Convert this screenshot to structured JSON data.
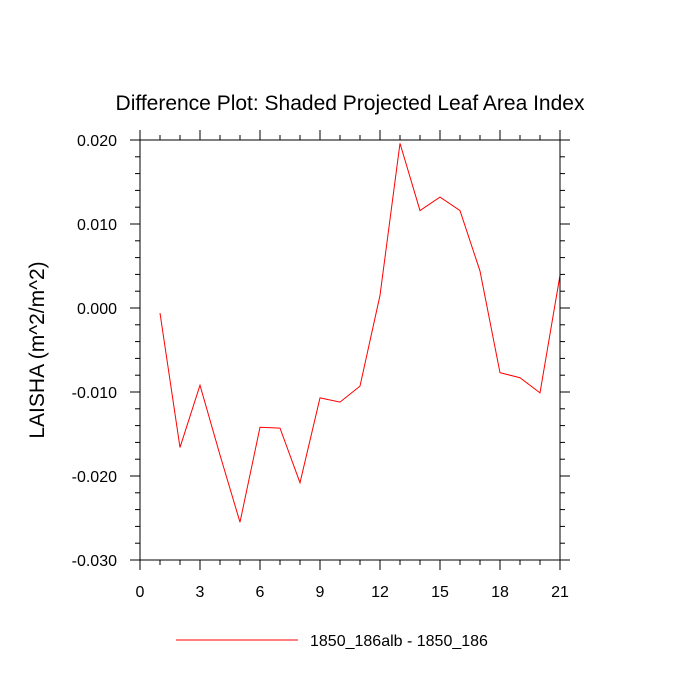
{
  "chart_data": {
    "type": "line",
    "title": "Difference Plot: Shaded Projected Leaf Area Index",
    "xlabel": "",
    "ylabel": "LAISHA  (m^2/m^2)",
    "xlim": [
      0,
      21
    ],
    "ylim": [
      -0.03,
      0.02
    ],
    "x_ticks": [
      0,
      3,
      6,
      9,
      12,
      15,
      18,
      21
    ],
    "x_tick_labels": [
      "0",
      "3",
      "6",
      "9",
      "12",
      "15",
      "18",
      "21"
    ],
    "y_ticks": [
      -0.03,
      -0.02,
      -0.01,
      0.0,
      0.01,
      0.02
    ],
    "y_tick_labels": [
      "-0.030",
      "-0.020",
      "-0.010",
      "0.000",
      "0.010",
      "0.020"
    ],
    "x_minor_step": 1,
    "y_minor_step": 0.002,
    "grid": false,
    "legend_position": "bottom-center",
    "series": [
      {
        "name": "1850_186alb - 1850_186",
        "color": "#ff0000",
        "x": [
          1,
          2,
          3,
          4,
          5,
          6,
          7,
          8,
          9,
          10,
          11,
          12,
          13,
          14,
          15,
          16,
          17,
          18,
          19,
          20,
          21
        ],
        "values": [
          -0.0006,
          -0.0166,
          -0.0092,
          -0.0175,
          -0.0255,
          -0.0142,
          -0.0143,
          -0.0208,
          -0.0107,
          -0.0112,
          -0.0093,
          0.0015,
          0.0196,
          0.0116,
          0.0132,
          0.0116,
          0.0044,
          -0.0077,
          -0.0083,
          -0.0101,
          0.0039
        ]
      }
    ]
  }
}
